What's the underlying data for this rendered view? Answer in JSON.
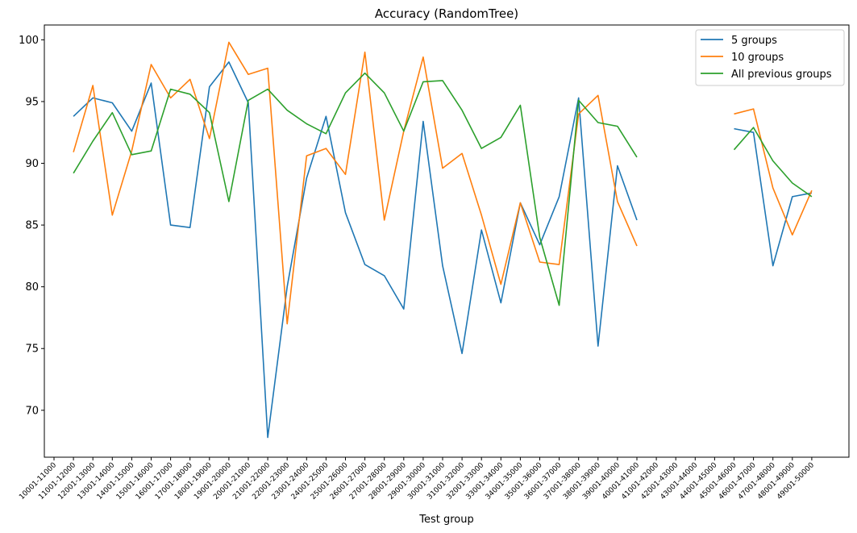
{
  "chart_data": {
    "type": "line",
    "title": "Accuracy (RandomTree)",
    "xlabel": "Test group",
    "ylabel": "",
    "ylim": [
      66.2,
      101.2
    ],
    "yticks": [
      70,
      75,
      80,
      85,
      90,
      95,
      100
    ],
    "grid": false,
    "legend_position": "top-right",
    "categories": [
      "10001-11000",
      "11001-12000",
      "12001-13000",
      "13001-14000",
      "14001-15000",
      "15001-16000",
      "16001-17000",
      "17001-18000",
      "18001-19000",
      "19001-20000",
      "20001-21000",
      "21001-22000",
      "22001-23000",
      "23001-24000",
      "24001-25000",
      "25001-26000",
      "26001-27000",
      "27001-28000",
      "28001-29000",
      "29001-30000",
      "30001-31000",
      "31001-32000",
      "32001-33000",
      "33001-34000",
      "34001-35000",
      "35001-36000",
      "36001-37000",
      "37001-38000",
      "38001-39000",
      "39001-40000",
      "40001-41000",
      "41001-42000",
      "42001-43000",
      "43001-44000",
      "44001-45000",
      "45001-46000",
      "46001-47000",
      "47001-48000",
      "48001-49000",
      "49001-50000"
    ],
    "series": [
      {
        "name": "5 groups",
        "color": "#1f77b4",
        "values": [
          null,
          93.8,
          95.3,
          94.9,
          92.6,
          96.5,
          85.0,
          84.8,
          96.2,
          98.2,
          94.9,
          67.8,
          80.0,
          88.8,
          93.8,
          86.0,
          81.8,
          80.9,
          78.2,
          93.4,
          81.7,
          74.6,
          84.6,
          78.7,
          86.8,
          83.4,
          87.3,
          95.3,
          75.2,
          89.8,
          85.4,
          null,
          null,
          null,
          null,
          92.8,
          92.5,
          81.7,
          87.3,
          87.6
        ]
      },
      {
        "name": "10 groups",
        "color": "#ff7f0e",
        "values": [
          null,
          90.9,
          96.3,
          85.8,
          91.0,
          98.0,
          95.3,
          96.8,
          92.0,
          99.8,
          97.2,
          97.7,
          77.0,
          90.6,
          91.2,
          89.1,
          99.0,
          85.4,
          92.6,
          98.6,
          89.6,
          90.8,
          85.8,
          80.2,
          86.8,
          82.0,
          81.8,
          94.0,
          95.5,
          86.9,
          83.3,
          null,
          null,
          null,
          null,
          94.0,
          94.4,
          88.0,
          84.2,
          87.8
        ]
      },
      {
        "name": "All previous groups",
        "color": "#2ca02c",
        "values": [
          null,
          89.2,
          91.8,
          94.1,
          90.7,
          91.0,
          96.0,
          95.6,
          94.1,
          86.9,
          95.1,
          96.0,
          94.3,
          93.2,
          92.4,
          95.7,
          97.3,
          95.7,
          92.6,
          96.6,
          96.7,
          94.3,
          91.2,
          92.1,
          94.7,
          84.0,
          78.5,
          95.1,
          93.3,
          93.0,
          90.5,
          null,
          null,
          null,
          null,
          91.1,
          92.9,
          90.2,
          88.4,
          87.3
        ]
      }
    ]
  }
}
